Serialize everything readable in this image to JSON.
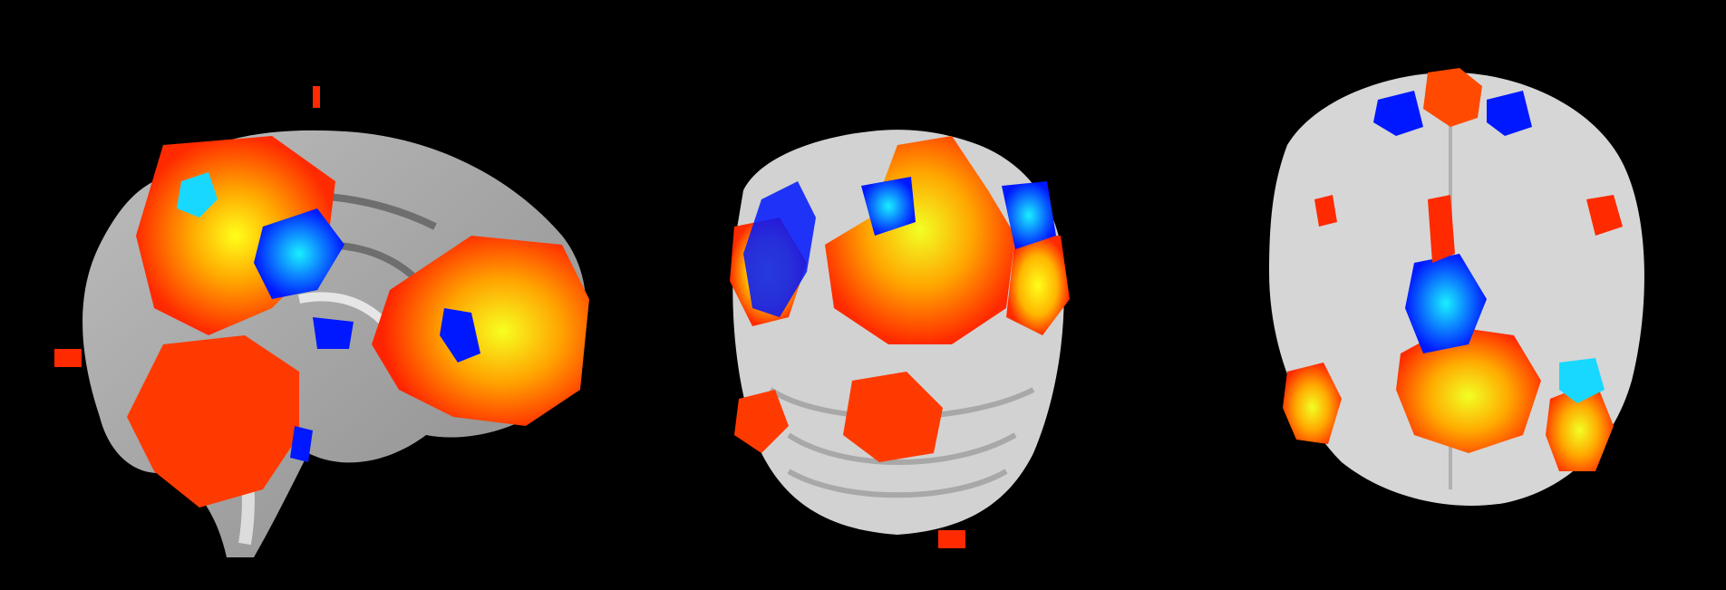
{
  "image": {
    "description_type": "fMRI statistical overlay on brain slices",
    "views": [
      {
        "id": "sagittal",
        "name": "sagittal-slice"
      },
      {
        "id": "coronal",
        "name": "coronal-slice"
      },
      {
        "id": "axial",
        "name": "axial-slice"
      }
    ],
    "colors": {
      "background": "#000000",
      "anatomy_light": "#d9d9d9",
      "anatomy_mid": "#a6a6a6",
      "anatomy_dark": "#6e6e6e",
      "positive_low": "#ff2a00",
      "positive_mid": "#ff8a00",
      "positive_high": "#ffff1a",
      "negative_low": "#0018ff",
      "negative_high": "#19f0ff"
    }
  }
}
